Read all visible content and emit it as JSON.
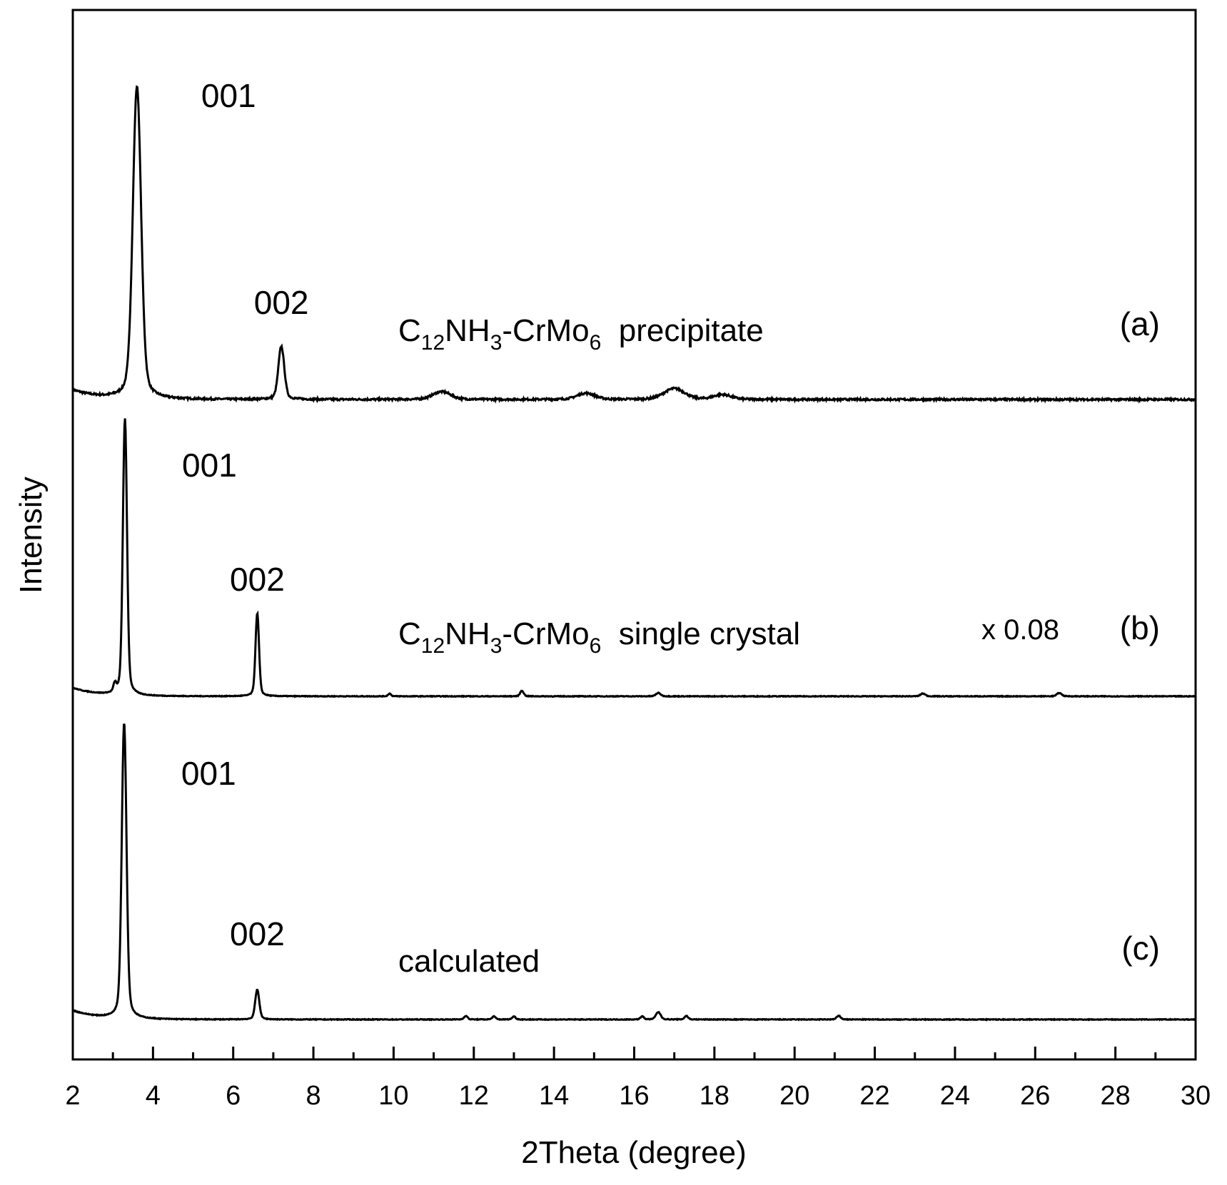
{
  "chart_data": {
    "type": "line",
    "xlabel": "2Theta (degree)",
    "ylabel": "Intensity",
    "xlim": [
      2,
      30
    ],
    "x_ticks": [
      "2",
      "4",
      "6",
      "8",
      "10",
      "12",
      "14",
      "16",
      "18",
      "20",
      "22",
      "24",
      "26",
      "28",
      "30"
    ],
    "y_ticks": [],
    "grid": false,
    "legend": "none",
    "series": [
      {
        "id": "a",
        "tag": "(a)",
        "name": "C12NH3-CrMo6  precipitate",
        "name_parts": {
          "C": "C",
          "c_sub": "12",
          "NH": "NH",
          "h_sub": "3",
          "CrMo": "-CrMo",
          "mo_sub": "6",
          "rest": "precipitate"
        },
        "baseline": 0.0,
        "peaks": [
          {
            "x": 3.6,
            "height": 1.0,
            "width": 0.14,
            "label": "001"
          },
          {
            "x": 7.2,
            "height": 0.17,
            "width": 0.1,
            "label": "002"
          },
          {
            "x": 11.2,
            "height": 0.025,
            "width": 0.3,
            "label": ""
          },
          {
            "x": 14.8,
            "height": 0.02,
            "width": 0.3,
            "label": ""
          },
          {
            "x": 17.0,
            "height": 0.035,
            "width": 0.35,
            "label": ""
          },
          {
            "x": 18.2,
            "height": 0.015,
            "width": 0.3,
            "label": ""
          }
        ]
      },
      {
        "id": "b",
        "tag": "(b)",
        "name": "C12NH3-CrMo6  single crystal",
        "name_parts": {
          "C": "C",
          "c_sub": "12",
          "NH": "NH",
          "h_sub": "3",
          "CrMo": "-CrMo",
          "mo_sub": "6",
          "rest": "single crystal"
        },
        "scale_label": "x 0.08",
        "baseline": 0.0,
        "peaks": [
          {
            "x": 3.3,
            "height": 1.0,
            "width": 0.07,
            "label": "001"
          },
          {
            "x": 3.05,
            "height": 0.03,
            "width": 0.05,
            "label": ""
          },
          {
            "x": 6.6,
            "height": 0.3,
            "width": 0.06,
            "label": "002"
          },
          {
            "x": 9.9,
            "height": 0.01,
            "width": 0.05,
            "label": ""
          },
          {
            "x": 13.2,
            "height": 0.02,
            "width": 0.06,
            "label": ""
          },
          {
            "x": 16.6,
            "height": 0.012,
            "width": 0.08,
            "label": ""
          },
          {
            "x": 23.2,
            "height": 0.01,
            "width": 0.08,
            "label": ""
          },
          {
            "x": 26.6,
            "height": 0.012,
            "width": 0.08,
            "label": ""
          }
        ]
      },
      {
        "id": "c",
        "tag": "(c)",
        "name": "calculated",
        "baseline": 0.0,
        "peaks": [
          {
            "x": 3.28,
            "height": 1.0,
            "width": 0.08,
            "label": "001"
          },
          {
            "x": 6.6,
            "height": 0.1,
            "width": 0.07,
            "label": "002"
          },
          {
            "x": 11.8,
            "height": 0.012,
            "width": 0.06,
            "label": ""
          },
          {
            "x": 12.5,
            "height": 0.01,
            "width": 0.06,
            "label": ""
          },
          {
            "x": 13.0,
            "height": 0.01,
            "width": 0.06,
            "label": ""
          },
          {
            "x": 16.2,
            "height": 0.01,
            "width": 0.06,
            "label": ""
          },
          {
            "x": 16.6,
            "height": 0.025,
            "width": 0.08,
            "label": ""
          },
          {
            "x": 17.3,
            "height": 0.012,
            "width": 0.06,
            "label": ""
          },
          {
            "x": 21.1,
            "height": 0.012,
            "width": 0.07,
            "label": ""
          }
        ]
      }
    ]
  }
}
